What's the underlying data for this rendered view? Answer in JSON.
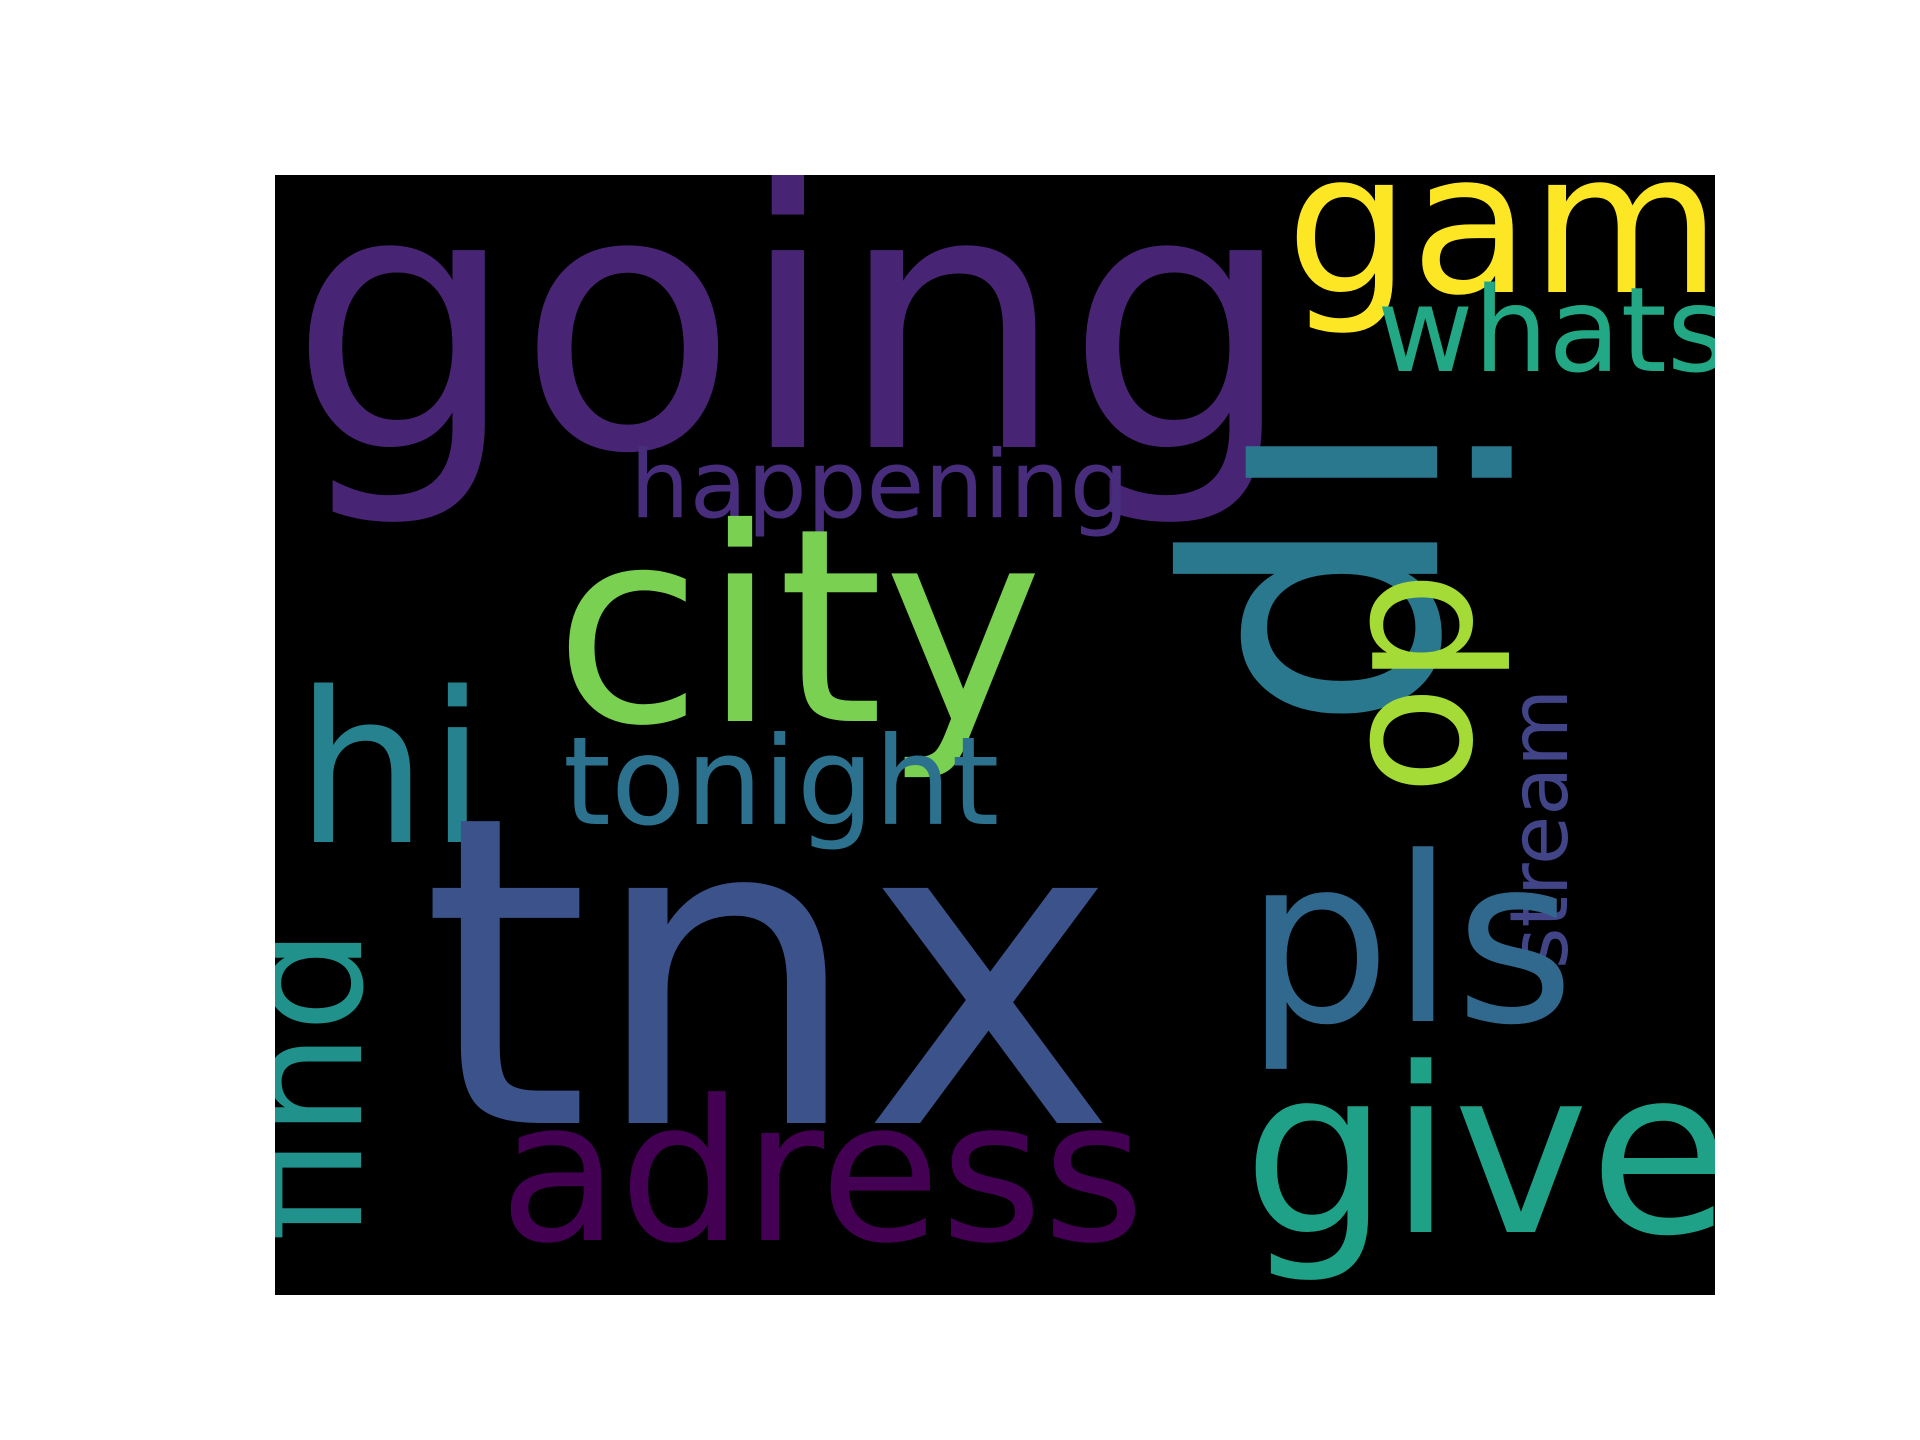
{
  "canvas": {
    "background": "#ffffff",
    "panel_background": "#000000"
  },
  "words": [
    {
      "id": "going",
      "text": "going",
      "color": "#482475",
      "orientation": "horizontal"
    },
    {
      "id": "game",
      "text": "game",
      "color": "#fde725",
      "orientation": "horizontal"
    },
    {
      "id": "whats",
      "text": "whats",
      "color": "#22a884",
      "orientation": "horizontal"
    },
    {
      "id": "ip",
      "text": "ip",
      "color": "#2a788e",
      "orientation": "vertical"
    },
    {
      "id": "happening",
      "text": "happening",
      "color": "#472d7b",
      "orientation": "horizontal"
    },
    {
      "id": "city",
      "text": "city",
      "color": "#7ad151",
      "orientation": "horizontal"
    },
    {
      "id": "do",
      "text": "do",
      "color": "#a5db36",
      "orientation": "vertical"
    },
    {
      "id": "hi",
      "text": "hi",
      "color": "#26828e",
      "orientation": "horizontal"
    },
    {
      "id": "tonight",
      "text": "tonight",
      "color": "#2c728e",
      "orientation": "horizontal"
    },
    {
      "id": "stream",
      "text": "stream",
      "color": "#414487",
      "orientation": "vertical"
    },
    {
      "id": "tnx",
      "text": "tnx",
      "color": "#3b528b",
      "orientation": "horizontal"
    },
    {
      "id": "pls",
      "text": "pls",
      "color": "#31688e",
      "orientation": "horizontal"
    },
    {
      "id": "find",
      "text": "find",
      "color": "#21918c",
      "orientation": "vertical"
    },
    {
      "id": "give",
      "text": "give",
      "color": "#1fa187",
      "orientation": "horizontal"
    },
    {
      "id": "adress",
      "text": "adress",
      "color": "#440154",
      "orientation": "horizontal"
    }
  ]
}
